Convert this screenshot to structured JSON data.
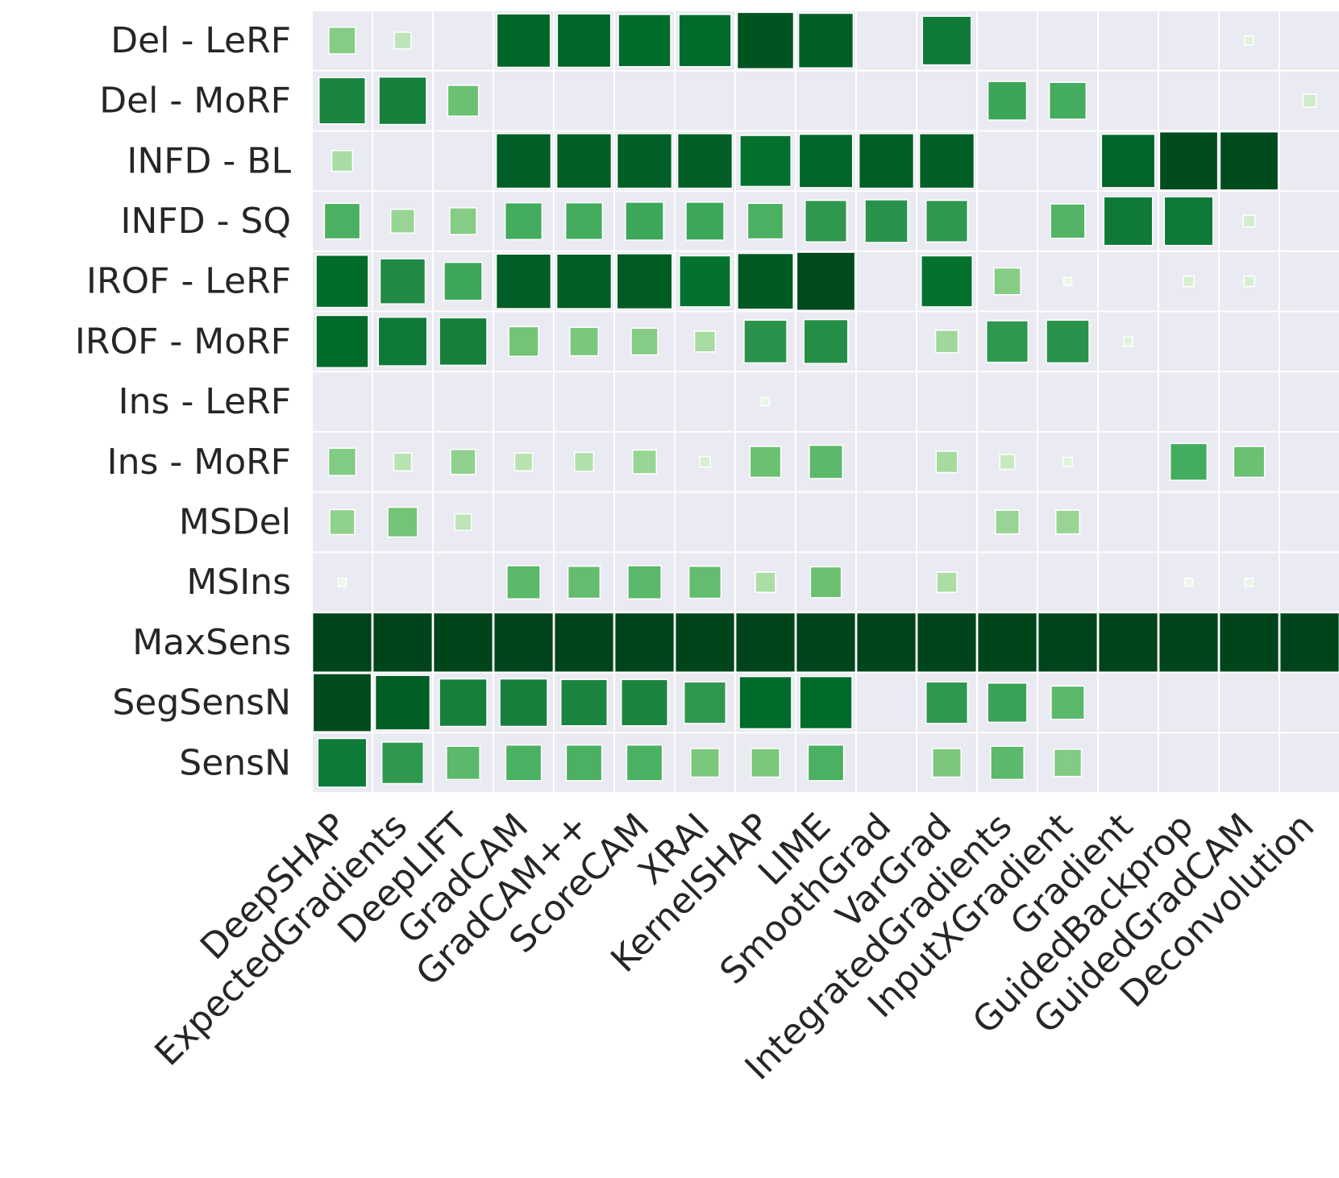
{
  "chart_data": {
    "type": "heatmap",
    "title": "",
    "xlabel": "",
    "ylabel": "",
    "rows": [
      "Del - LeRF",
      "Del - MoRF",
      "INFD - BL",
      "INFD - SQ",
      "IROF - LeRF",
      "IROF - MoRF",
      "Ins - LeRF",
      "Ins - MoRF",
      "MSDel",
      "MSIns",
      "MaxSens",
      "SegSensN",
      "SensN"
    ],
    "columns": [
      "DeepSHAP",
      "ExpectedGradients",
      "DeepLIFT",
      "GradCAM",
      "GradCAM++",
      "ScoreCAM",
      "XRAI",
      "KernelSHAP",
      "LIME",
      "SmoothGrad",
      "VarGrad",
      "IntegratedGradients",
      "InputXGradient",
      "Gradient",
      "GuidedBackprop",
      "GuidedGradCAM",
      "Deconvolution"
    ],
    "value_range": [
      0,
      1
    ],
    "values": [
      [
        0.45,
        0.28,
        0.0,
        0.9,
        0.9,
        0.88,
        0.88,
        0.95,
        0.92,
        0.0,
        0.82,
        0.0,
        0.0,
        0.0,
        0.0,
        0.15,
        0.0
      ],
      [
        0.78,
        0.8,
        0.52,
        0.0,
        0.0,
        0.0,
        0.0,
        0.0,
        0.0,
        0.0,
        0.0,
        0.65,
        0.62,
        0.0,
        0.0,
        0.0,
        0.22
      ],
      [
        0.35,
        0.0,
        0.0,
        0.92,
        0.92,
        0.92,
        0.92,
        0.86,
        0.9,
        0.92,
        0.92,
        0.0,
        0.0,
        0.9,
        0.98,
        0.98,
        0.0
      ],
      [
        0.6,
        0.4,
        0.45,
        0.62,
        0.62,
        0.64,
        0.64,
        0.6,
        0.7,
        0.72,
        0.7,
        0.0,
        0.58,
        0.82,
        0.82,
        0.2,
        0.0
      ],
      [
        0.88,
        0.76,
        0.64,
        0.92,
        0.92,
        0.93,
        0.86,
        0.94,
        0.98,
        0.0,
        0.86,
        0.45,
        0.08,
        0.0,
        0.18,
        0.18,
        0.0
      ],
      [
        0.88,
        0.82,
        0.8,
        0.5,
        0.48,
        0.45,
        0.35,
        0.72,
        0.74,
        0.0,
        0.38,
        0.7,
        0.72,
        0.15,
        0.0,
        0.0,
        0.0
      ],
      [
        0.0,
        0.0,
        0.0,
        0.0,
        0.0,
        0.0,
        0.0,
        0.12,
        0.0,
        0.0,
        0.0,
        0.0,
        0.0,
        0.0,
        0.0,
        0.0,
        0.0
      ],
      [
        0.46,
        0.3,
        0.42,
        0.3,
        0.32,
        0.4,
        0.18,
        0.52,
        0.56,
        0.0,
        0.36,
        0.25,
        0.15,
        0.0,
        0.62,
        0.52,
        0.0
      ],
      [
        0.42,
        0.5,
        0.28,
        0.0,
        0.0,
        0.0,
        0.0,
        0.0,
        0.0,
        0.0,
        0.0,
        0.4,
        0.4,
        0.0,
        0.0,
        0.0,
        0.0
      ],
      [
        0.08,
        0.0,
        0.0,
        0.56,
        0.54,
        0.56,
        0.54,
        0.34,
        0.52,
        0.0,
        0.34,
        0.0,
        0.0,
        0.0,
        0.08,
        0.1,
        0.0
      ],
      [
        1.0,
        1.0,
        1.0,
        1.0,
        1.0,
        1.0,
        1.0,
        1.0,
        1.0,
        1.0,
        1.0,
        1.0,
        1.0,
        1.0,
        1.0,
        1.0,
        1.0
      ],
      [
        0.98,
        0.92,
        0.8,
        0.8,
        0.78,
        0.78,
        0.7,
        0.88,
        0.88,
        0.0,
        0.7,
        0.66,
        0.56,
        0.0,
        0.0,
        0.0,
        0.0
      ],
      [
        0.82,
        0.7,
        0.56,
        0.6,
        0.6,
        0.6,
        0.48,
        0.48,
        0.6,
        0.0,
        0.48,
        0.56,
        0.46,
        0.0,
        0.0,
        0.0,
        0.0
      ]
    ],
    "encoding": "color and square size both scale with value",
    "colormap": "Greens",
    "colors": {
      "background": "#eaeaf2",
      "grid": "#ffffff",
      "text": "#262626",
      "low": "#f7fcf5",
      "high": "#00441b"
    },
    "grid": true,
    "legend": "none"
  }
}
